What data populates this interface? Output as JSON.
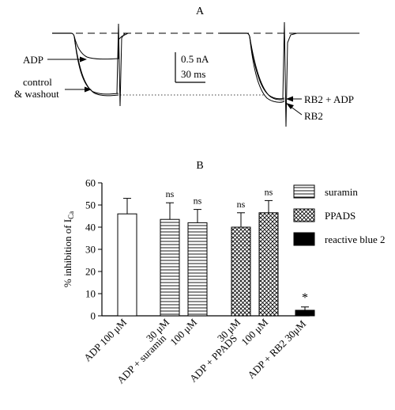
{
  "panel_a": {
    "label": "A",
    "scale_current": "0.5 nA",
    "scale_time": "30 ms",
    "labels": {
      "adp": "ADP",
      "control_line1": "control",
      "control_line2": "& washout",
      "rb2_adp": "RB2 + ADP",
      "rb2": "RB2"
    }
  },
  "panel_b": {
    "label": "B",
    "ylabel_main": "% inhibition of I",
    "ylabel_sub": "Ca",
    "ns": "ns",
    "star": "*",
    "legend": [
      {
        "key": "suramin",
        "label": "suramin",
        "pattern": "hlines"
      },
      {
        "key": "ppads",
        "label": "PPADS",
        "pattern": "crosshatch"
      },
      {
        "key": "rb2",
        "label": "reactive blue 2",
        "pattern": "solid"
      }
    ],
    "xlabels": {
      "adp": "ADP 100 μM",
      "sur30": "30 μM",
      "sur100": "100 μM",
      "sur_group": "ADP + suramin",
      "pp30": "30 μM",
      "pp100": "100 μM",
      "pp_group": "ADP + PPADS",
      "rb2": "ADP + RB2 30μM"
    }
  },
  "chart_data": {
    "type": "bar",
    "categories": [
      "ADP 100 μM",
      "ADP + suramin 30 μM",
      "ADP + suramin 100 μM",
      "ADP + PPADS 30 μM",
      "ADP + PPADS 100 μM",
      "ADP + RB2 30μM"
    ],
    "values": [
      46,
      43.5,
      42,
      40,
      46.5,
      2.5
    ],
    "errors": [
      7,
      7.5,
      6,
      6.5,
      5.5,
      1.5
    ],
    "patterns": [
      "open",
      "hlines",
      "hlines",
      "crosshatch",
      "crosshatch",
      "solid"
    ],
    "annotations": [
      "",
      "ns",
      "ns",
      "ns",
      "ns",
      "*"
    ],
    "ylabel": "% inhibition of ICa",
    "ylim": [
      0,
      60
    ],
    "yticks": [
      0,
      10,
      20,
      30,
      40,
      50,
      60
    ],
    "legend_position": "top-right",
    "grid": false
  }
}
